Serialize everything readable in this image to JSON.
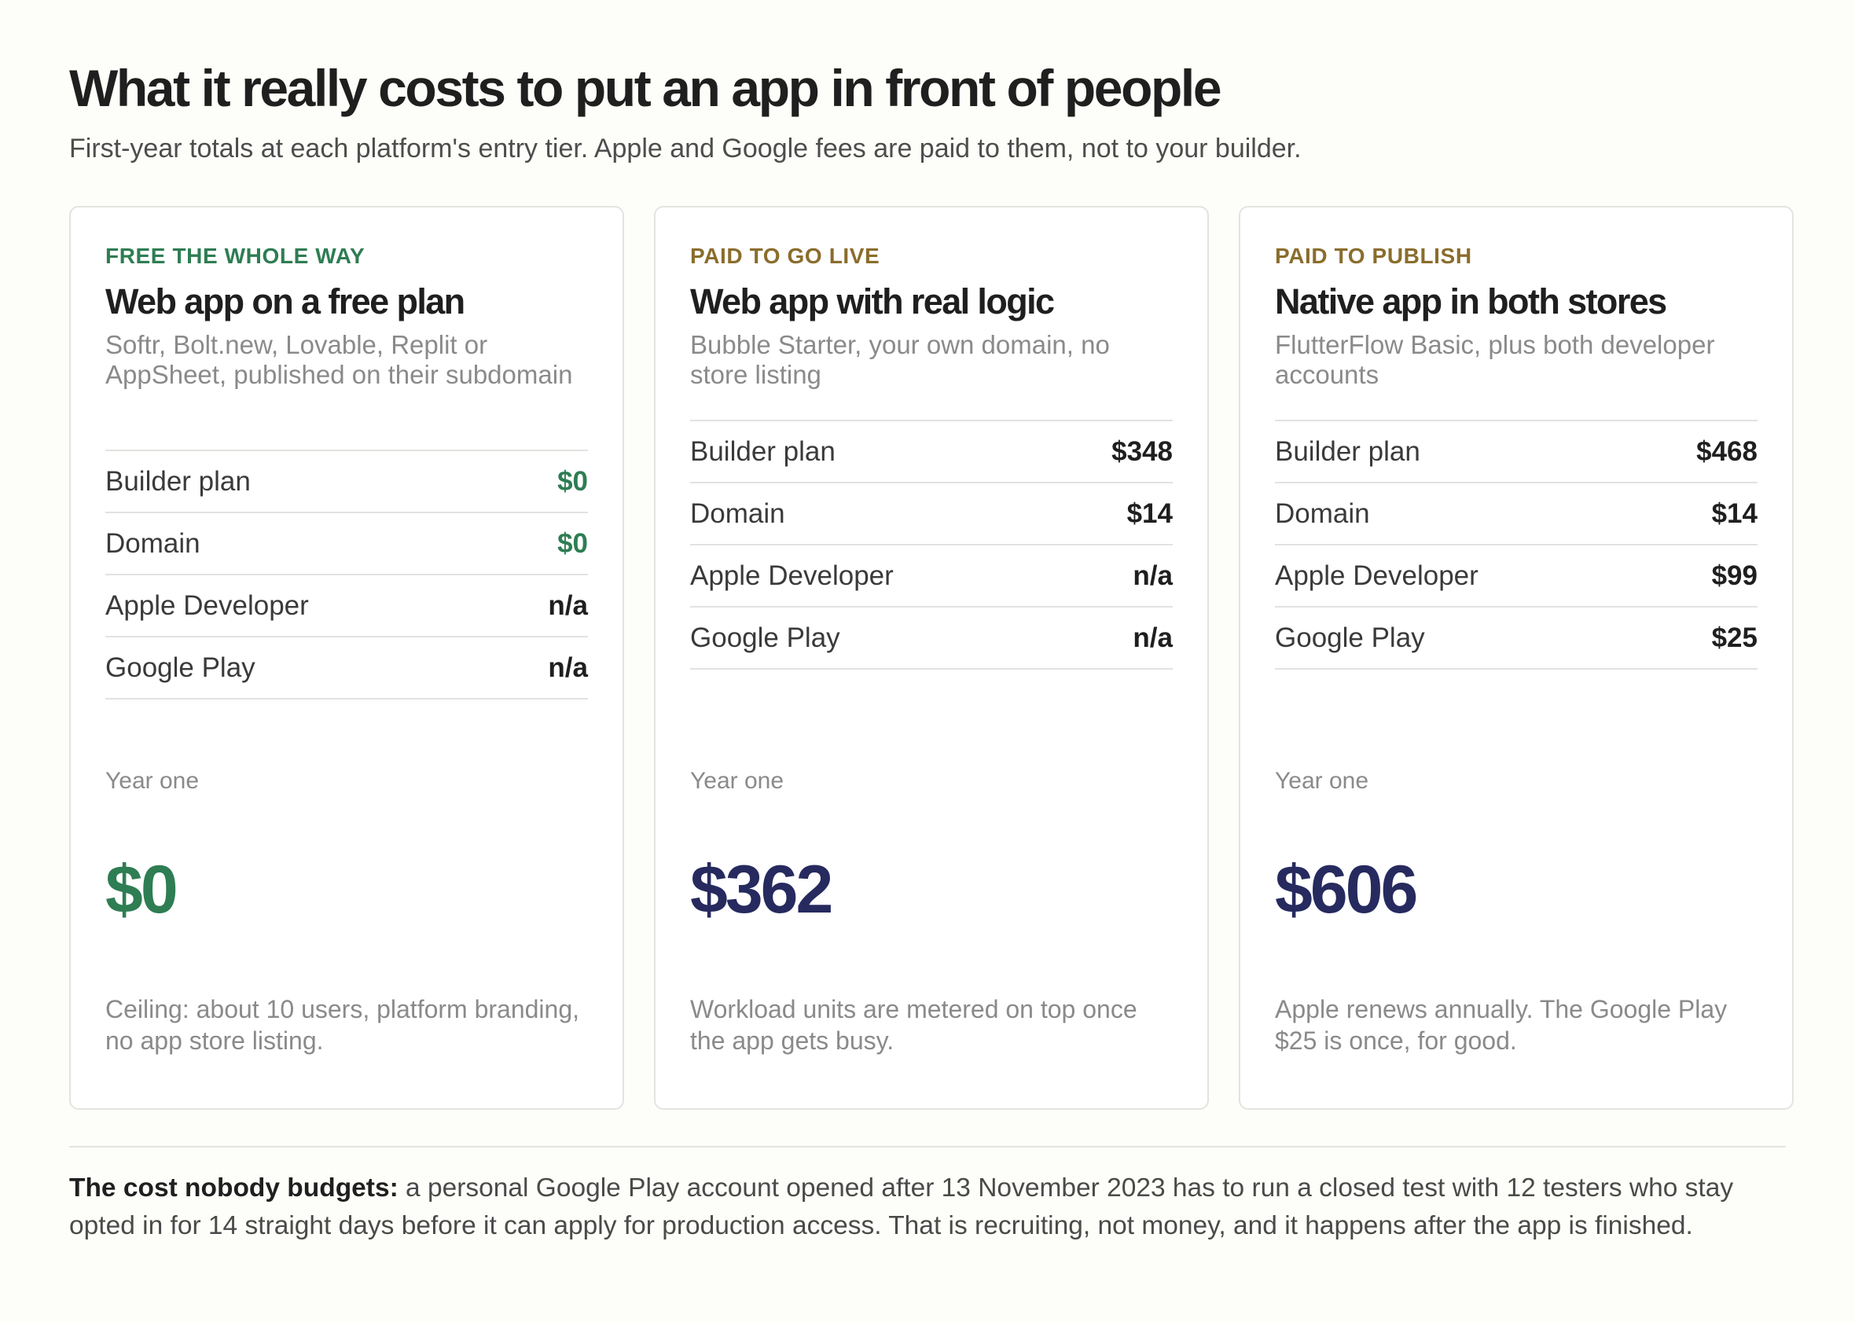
{
  "header": {
    "title": "What it really costs to put an app in front of people",
    "subtitle": "First-year totals at each platform's entry tier. Apple and Google fees are paid to them, not to your builder."
  },
  "colors": {
    "free_green": "#2e7d53",
    "paid_gold": "#8a6d2c",
    "total_navy": "#262a5e"
  },
  "cards": [
    {
      "eyebrow": "FREE THE WHOLE WAY",
      "title": "Web app on a free plan",
      "description": "Softr, Bolt.new, Lovable, Replit or AppSheet, published on their subdomain",
      "rows": [
        {
          "label": "Builder plan",
          "value": "$0"
        },
        {
          "label": "Domain",
          "value": "$0"
        },
        {
          "label": "Apple Developer",
          "value": "n/a"
        },
        {
          "label": "Google Play",
          "value": "n/a"
        }
      ],
      "year_label": "Year one",
      "total": "$0",
      "note": "Ceiling: about 10 users, platform branding, no app store listing."
    },
    {
      "eyebrow": "PAID TO GO LIVE",
      "title": "Web app with real logic",
      "description": "Bubble Starter, your own domain, no store listing",
      "rows": [
        {
          "label": "Builder plan",
          "value": "$348"
        },
        {
          "label": "Domain",
          "value": "$14"
        },
        {
          "label": "Apple Developer",
          "value": "n/a"
        },
        {
          "label": "Google Play",
          "value": "n/a"
        }
      ],
      "year_label": "Year one",
      "total": "$362",
      "note": "Workload units are metered on top once the app gets busy."
    },
    {
      "eyebrow": "PAID TO PUBLISH",
      "title": "Native app in both stores",
      "description": "FlutterFlow Basic, plus both developer accounts",
      "rows": [
        {
          "label": "Builder plan",
          "value": "$468"
        },
        {
          "label": "Domain",
          "value": "$14"
        },
        {
          "label": "Apple Developer",
          "value": "$99"
        },
        {
          "label": "Google Play",
          "value": "$25"
        }
      ],
      "year_label": "Year one",
      "total": "$606",
      "note": "Apple renews annually. The Google Play $25 is once, for good."
    }
  ],
  "footer": {
    "lead": "The cost nobody budgets:",
    "text": " a personal Google Play account opened after 13 November 2023 has to run a closed test with 12 testers who stay opted in for 14 straight days before it can apply for production access. That is recruiting, not money, and it happens after the app is finished."
  }
}
